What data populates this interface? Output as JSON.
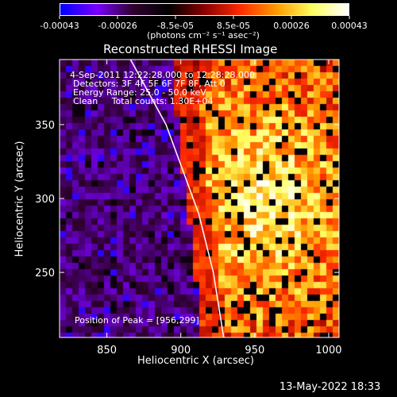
{
  "colorbar": {
    "tick_labels": [
      "-0.00043",
      "-0.00026",
      "-8.5e-05",
      "8.5e-05",
      "0.00026",
      "0.00043"
    ],
    "unit_label": "(photons cm⁻² s⁻¹ asec⁻²)",
    "range": [
      -0.00043,
      0.00043
    ],
    "colors": [
      "#0000ff",
      "#7a00ff",
      "#300030",
      "#000000",
      "#8a0000",
      "#ff2a00",
      "#ff9a00",
      "#ffff60",
      "#ffffff"
    ]
  },
  "chart_data": {
    "type": "heatmap",
    "title": "Reconstructed RHESSI Image",
    "xlabel": "Heliocentric X (arcsec)",
    "ylabel": "Heliocentric Y (arcsec)",
    "xlim": [
      818,
      1007
    ],
    "ylim": [
      206,
      394
    ],
    "x_ticks": [
      850,
      900,
      950,
      1000
    ],
    "y_ticks": [
      250,
      300,
      350
    ],
    "peak": [
      956,
      299
    ],
    "limb_points": [
      [
        866,
        394
      ],
      [
        890,
        350
      ],
      [
        912,
        290
      ],
      [
        922,
        250
      ],
      [
        929,
        206
      ]
    ],
    "info_lines": [
      "4-Sep-2011 12:22:28.000 to 12:28:28.000",
      "Detectors: 3F 4F 5F 6F 7F 8F, Att 0",
      "Energy Range: 25.0 - 50.0 keV",
      "Clean     Total counts: 1.30E+04"
    ],
    "peak_label": "Position of Peak = [956,299]"
  },
  "footer": {
    "timestamp": "13-May-2022 18:33"
  }
}
